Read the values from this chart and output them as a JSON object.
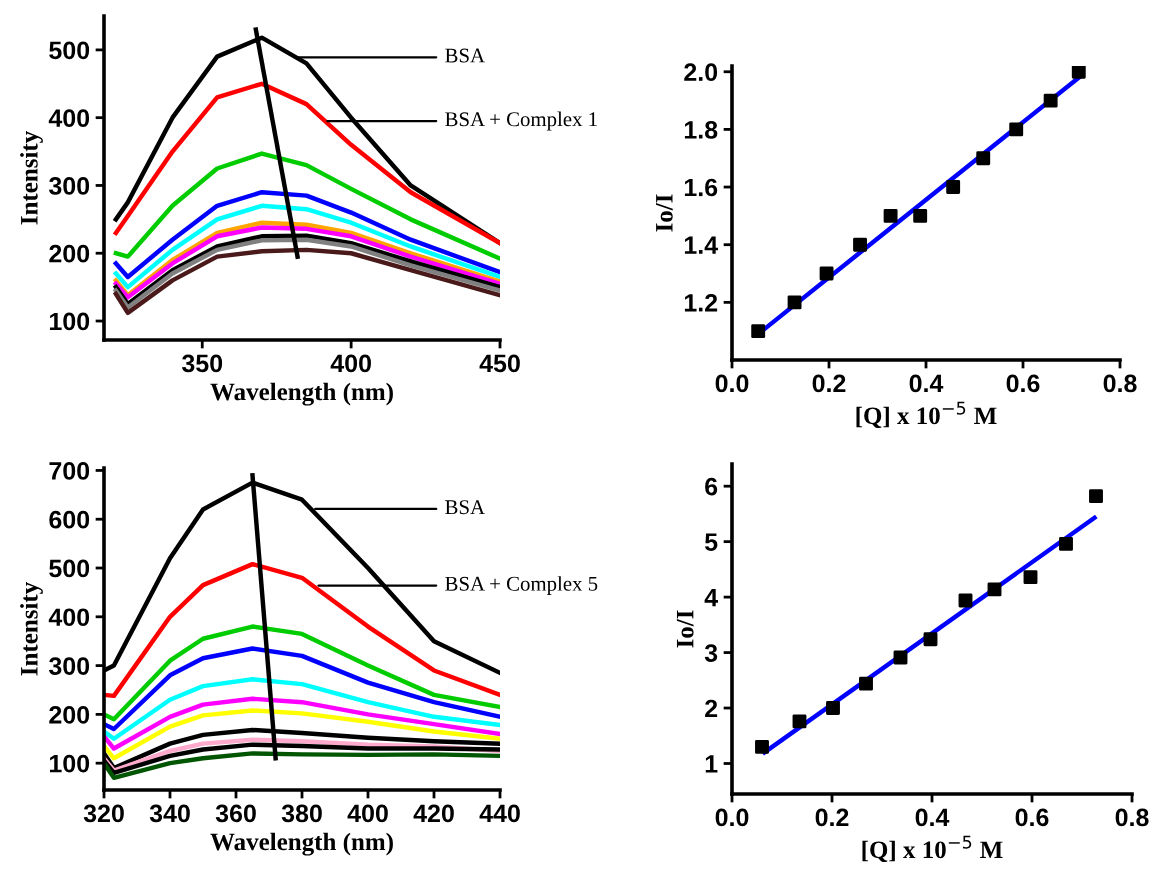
{
  "chart_data": [
    {
      "type": "line",
      "xlabel": "Wavelength (nm)",
      "ylabel": "Intensity",
      "xlim": [
        317,
        450
      ],
      "ylim": [
        72,
        550
      ],
      "xticks": [
        350,
        400,
        450
      ],
      "yticks": [
        100,
        200,
        300,
        400,
        500
      ],
      "legend": false,
      "marker": "none",
      "annotations": [
        {
          "text": "BSA",
          "x": 381,
          "y": 489
        },
        {
          "text": "BSA + Complex 1",
          "x": 392,
          "y": 395
        }
      ],
      "x": [
        321,
        325,
        340,
        355,
        370,
        385,
        400,
        420,
        450
      ],
      "series": [
        {
          "color": "#000000",
          "values": [
            250,
            275,
            400,
            490,
            518,
            480,
            400,
            300,
            215
          ]
        },
        {
          "color": "#ff0000",
          "values": [
            230,
            255,
            350,
            430,
            450,
            420,
            360,
            290,
            215
          ]
        },
        {
          "color": "#00cc00",
          "values": [
            200,
            195,
            270,
            325,
            347,
            330,
            295,
            250,
            192
          ]
        },
        {
          "color": "#0000ff",
          "values": [
            185,
            165,
            220,
            270,
            290,
            285,
            260,
            220,
            172
          ]
        },
        {
          "color": "#00ffff",
          "values": [
            170,
            150,
            205,
            250,
            270,
            265,
            245,
            210,
            165
          ]
        },
        {
          "color": "#ffa500",
          "values": [
            160,
            138,
            190,
            230,
            245,
            242,
            230,
            200,
            158
          ]
        },
        {
          "color": "#ff00ff",
          "values": [
            155,
            135,
            185,
            225,
            238,
            236,
            225,
            195,
            155
          ]
        },
        {
          "color": "#000000",
          "values": [
            150,
            125,
            175,
            210,
            225,
            226,
            215,
            188,
            150
          ]
        },
        {
          "color": "#808080",
          "values": [
            145,
            120,
            170,
            205,
            219,
            220,
            210,
            182,
            145
          ]
        },
        {
          "color": "#4a1a1a",
          "values": [
            140,
            112,
            160,
            195,
            203,
            205,
            200,
            175,
            138
          ]
        },
        {
          "type": "line",
          "color": "#000000",
          "x": [
            368,
            382
          ],
          "values": [
            530,
            195
          ]
        }
      ]
    },
    {
      "type": "scatter",
      "xlabel": "[Q] x 10$^{−5}$ M",
      "ylabel": "Io/I",
      "xlim": [
        0,
        0.8
      ],
      "ylim": [
        1.0,
        2.02
      ],
      "xticks": [
        {
          "value": 0,
          "label": "0.0"
        },
        0.2,
        0.4,
        0.6,
        0.8
      ],
      "yticks": [
        1.2,
        1.4,
        1.6,
        1.8,
        {
          "value": 2,
          "label": "2.0"
        }
      ],
      "legend": false,
      "marker": "square",
      "x": [
        0.054,
        0.129,
        0.195,
        0.264,
        0.327,
        0.388,
        0.456,
        0.518,
        0.586,
        0.657,
        0.715
      ],
      "series": [
        {
          "color": "#000000",
          "values": [
            1.1,
            1.2,
            1.3,
            1.4,
            1.5,
            1.5,
            1.6,
            1.7,
            1.8,
            1.9,
            2.0
          ]
        },
        {
          "type": "line",
          "marker": "none",
          "color": "#0000ff",
          "x": [
            0.054,
            0.715
          ],
          "values": [
            1.09,
            1.98
          ]
        }
      ]
    },
    {
      "type": "line",
      "xlabel": "Wavelength (nm)",
      "ylabel": "Intensity",
      "xlim": [
        320,
        440
      ],
      "ylim": [
        45,
        705
      ],
      "xticks": [
        320,
        340,
        360,
        380,
        400,
        420,
        440
      ],
      "yticks": [
        100,
        200,
        300,
        400,
        500,
        600,
        700
      ],
      "legend": false,
      "marker": "none",
      "annotations": [
        {
          "text": "BSA",
          "x": 384,
          "y": 621
        },
        {
          "text": "BSA + Complex 5",
          "x": 385,
          "y": 464
        }
      ],
      "x": [
        320,
        323,
        340,
        350,
        365,
        380,
        400,
        420,
        440
      ],
      "series": [
        {
          "color": "#000000",
          "values": [
            290,
            300,
            520,
            620,
            675,
            640,
            500,
            350,
            285
          ]
        },
        {
          "color": "#ff0000",
          "values": [
            240,
            238,
            400,
            465,
            508,
            480,
            380,
            290,
            240
          ]
        },
        {
          "color": "#00cc00",
          "values": [
            200,
            190,
            310,
            355,
            380,
            365,
            300,
            240,
            215
          ]
        },
        {
          "color": "#0000ff",
          "values": [
            180,
            170,
            280,
            315,
            335,
            320,
            265,
            225,
            195
          ]
        },
        {
          "color": "#00ffff",
          "values": [
            165,
            150,
            230,
            258,
            272,
            262,
            225,
            195,
            178
          ]
        },
        {
          "color": "#ff00ff",
          "values": [
            155,
            130,
            195,
            220,
            232,
            225,
            200,
            180,
            160
          ]
        },
        {
          "color": "#ffff00",
          "values": [
            135,
            110,
            175,
            198,
            208,
            202,
            185,
            165,
            150
          ]
        },
        {
          "color": "#000000",
          "values": [
            120,
            90,
            140,
            158,
            168,
            162,
            152,
            145,
            140
          ]
        },
        {
          "color": "#ffaacc",
          "values": [
            110,
            85,
            125,
            140,
            148,
            145,
            138,
            134,
            125
          ]
        },
        {
          "color": "#000000",
          "values": [
            105,
            80,
            115,
            128,
            138,
            135,
            130,
            130,
            128
          ]
        },
        {
          "color": "#005500",
          "values": [
            100,
            70,
            100,
            110,
            120,
            118,
            117,
            118,
            115
          ]
        },
        {
          "type": "line",
          "color": "#000000",
          "x": [
            365,
            372
          ],
          "values": [
            690,
            110
          ]
        }
      ]
    },
    {
      "type": "scatter",
      "xlabel": "[Q] x 10$^{−5}$ M",
      "ylabel": "Io/I",
      "xlim": [
        0,
        0.8
      ],
      "ylim": [
        0.45,
        6.4
      ],
      "xticks": [
        {
          "value": 0,
          "label": "0.0"
        },
        0.2,
        0.4,
        0.6,
        0.8
      ],
      "yticks": [
        1,
        2,
        3,
        4,
        5,
        6
      ],
      "legend": false,
      "marker": "square",
      "x": [
        0.06,
        0.135,
        0.202,
        0.268,
        0.337,
        0.397,
        0.467,
        0.525,
        0.597,
        0.668,
        0.728
      ],
      "series": [
        {
          "color": "#000000",
          "values": [
            1.3,
            1.76,
            2.0,
            2.44,
            2.91,
            3.24,
            3.94,
            4.14,
            4.36,
            4.96,
            5.82
          ]
        },
        {
          "type": "line",
          "marker": "none",
          "color": "#0000ff",
          "x": [
            0.065,
            0.725
          ],
          "values": [
            1.2,
            5.43
          ]
        }
      ]
    }
  ]
}
